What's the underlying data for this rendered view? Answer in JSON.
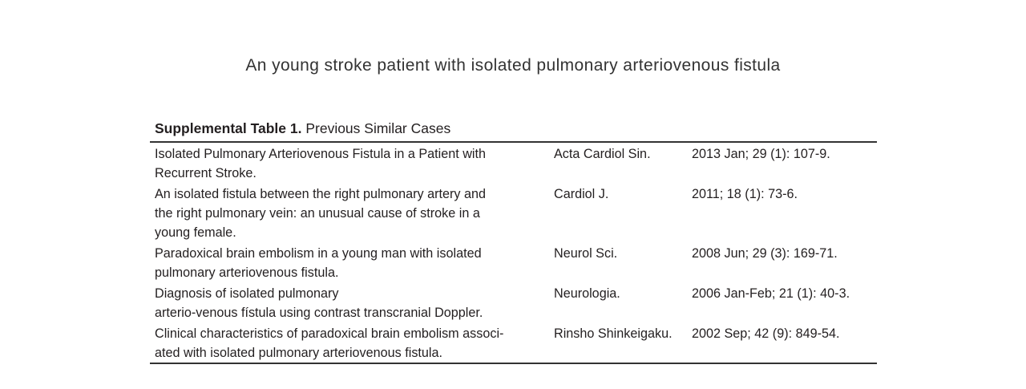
{
  "header": {
    "title": "An young stroke patient with isolated pulmonary arteriovenous fistula"
  },
  "table": {
    "caption_bold": "Supplemental Table 1.",
    "caption_text": " Previous Similar Cases",
    "rows": [
      {
        "title_lines": [
          "Isolated Pulmonary Arteriovenous Fistula in a Patient with",
          "Recurrent Stroke."
        ],
        "journal": "Acta Cardiol Sin.",
        "citation": "2013 Jan; 29 (1): 107-9."
      },
      {
        "title_lines": [
          "An isolated fistula between the right pulmonary artery and",
          "the right pulmonary vein: an unusual cause of stroke in a",
          "young female."
        ],
        "journal": "Cardiol J.",
        "citation": "2011; 18 (1): 73-6."
      },
      {
        "title_lines": [
          "Paradoxical brain embolism in a young man with isolated",
          "pulmonary arteriovenous fistula."
        ],
        "journal": "Neurol Sci.",
        "citation": "2008 Jun; 29 (3): 169-71."
      },
      {
        "title_lines": [
          "Diagnosis of isolated pulmonary",
          "arterio-venous fístula using contrast transcranial Doppler."
        ],
        "journal": "Neurologia.",
        "citation": "2006 Jan-Feb; 21 (1): 40-3."
      },
      {
        "title_lines": [
          "Clinical characteristics of paradoxical brain embolism associ-",
          "ated with isolated pulmonary arteriovenous fistula."
        ],
        "journal": "Rinsho Shinkeigaku.",
        "citation": "2002 Sep; 42 (9): 849-54."
      }
    ]
  }
}
